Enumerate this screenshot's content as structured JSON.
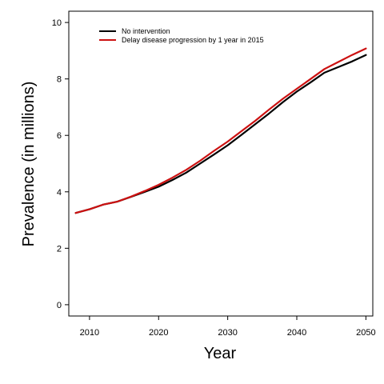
{
  "chart_data": {
    "type": "line",
    "xlabel": "Year",
    "ylabel": "Prevalence (in millions)",
    "xlim": [
      2007,
      2051
    ],
    "ylim": [
      -0.4,
      10.4
    ],
    "x_ticks": [
      2010,
      2020,
      2030,
      2040,
      2050
    ],
    "y_ticks": [
      0,
      2,
      4,
      6,
      8,
      10
    ],
    "legend_position": "top-left",
    "grid": false,
    "x": [
      2008,
      2010,
      2012,
      2014,
      2016,
      2018,
      2020,
      2022,
      2024,
      2026,
      2028,
      2030,
      2032,
      2034,
      2036,
      2038,
      2040,
      2042,
      2044,
      2046,
      2048,
      2050
    ],
    "series": [
      {
        "name": "No intervention",
        "color": "#000000",
        "values": [
          3.25,
          3.38,
          3.55,
          3.65,
          3.82,
          4.0,
          4.18,
          4.42,
          4.68,
          5.0,
          5.32,
          5.65,
          6.02,
          6.4,
          6.78,
          7.18,
          7.55,
          7.88,
          8.22,
          8.42,
          8.62,
          8.85
        ]
      },
      {
        "name": "Delay disease progression by 1 year in 2015",
        "color": "#cc1111",
        "values": [
          3.25,
          3.38,
          3.55,
          3.65,
          3.83,
          4.03,
          4.25,
          4.5,
          4.78,
          5.1,
          5.45,
          5.78,
          6.15,
          6.52,
          6.92,
          7.3,
          7.65,
          8.0,
          8.35,
          8.6,
          8.85,
          9.08
        ]
      }
    ]
  }
}
